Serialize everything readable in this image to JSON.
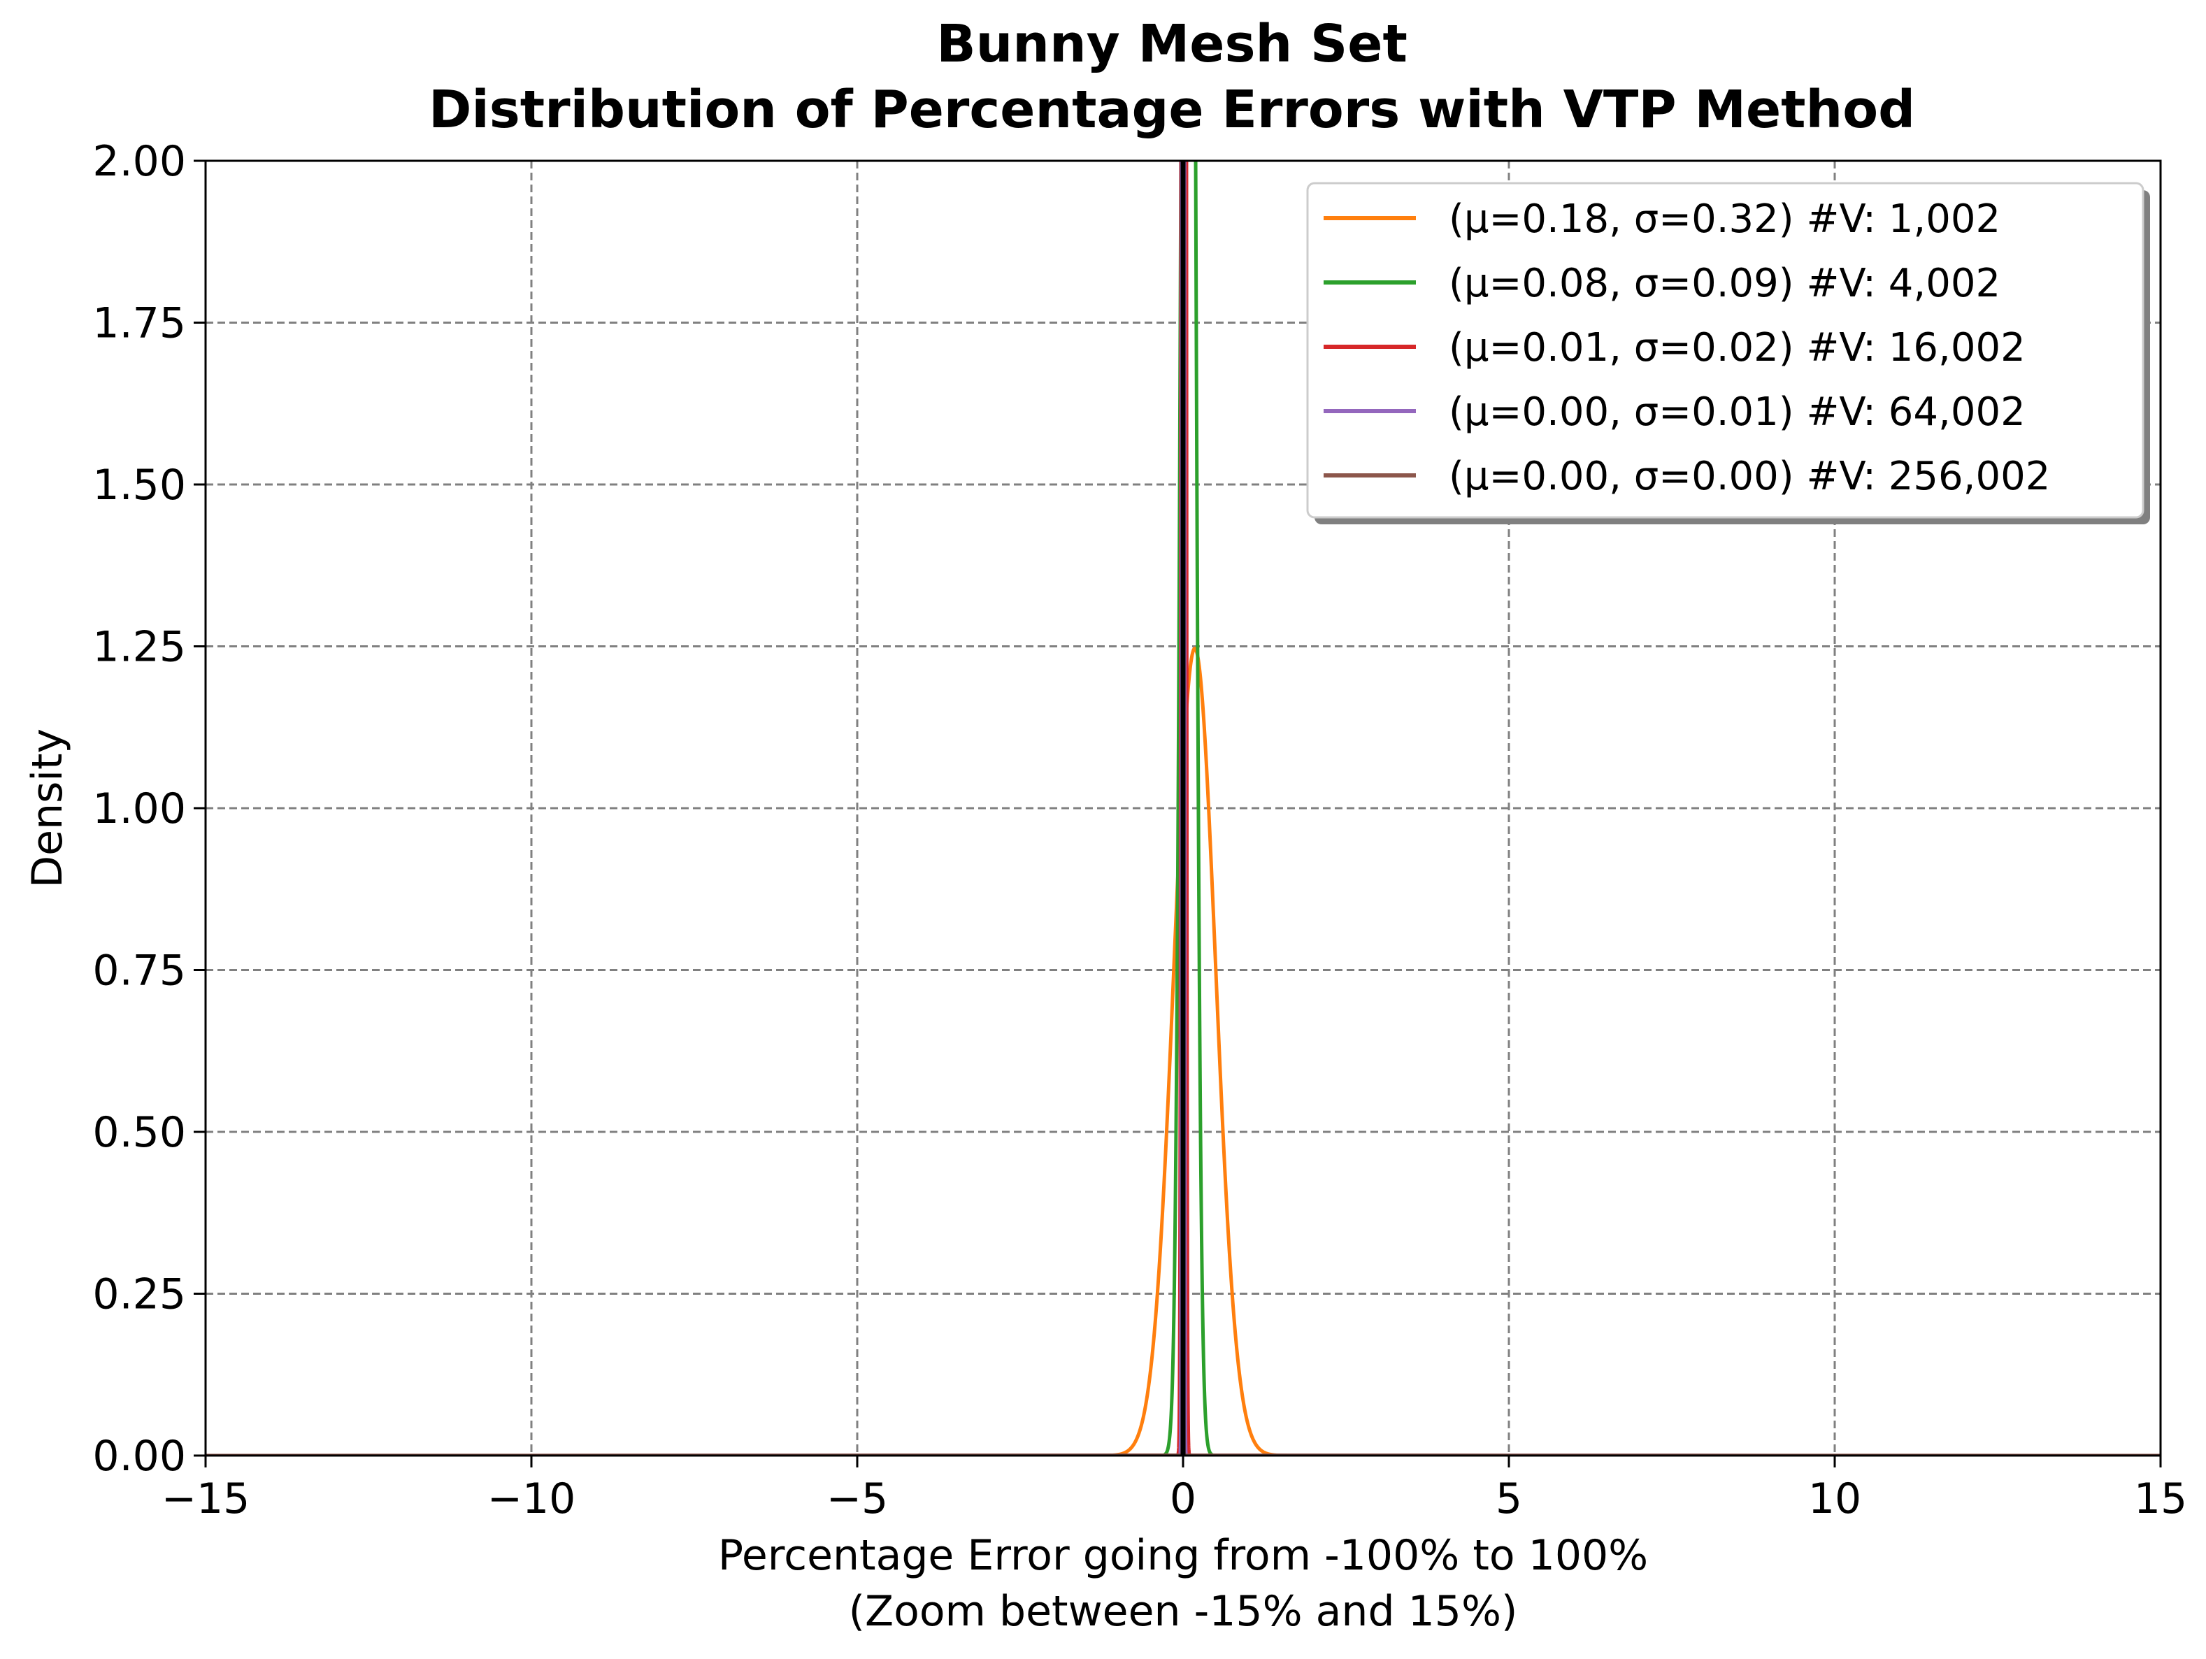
{
  "chart_data": {
    "type": "line",
    "title": "Bunny Mesh Set",
    "subtitle": "Distribution of Percentage Errors with VTP Method",
    "xlabel": "Percentage Error going from -100% to 100%",
    "xlabel2": "(Zoom between -15% and 15%)",
    "ylabel": "Density",
    "xlim": [
      -15,
      15
    ],
    "ylim": [
      0,
      2
    ],
    "xticks": [
      -15,
      -10,
      -5,
      0,
      5,
      10,
      15
    ],
    "xtick_labels": [
      "−15",
      "−10",
      "−5",
      "0",
      "5",
      "10",
      "15"
    ],
    "yticks": [
      0,
      0.25,
      0.5,
      0.75,
      1.0,
      1.25,
      1.5,
      1.75,
      2.0
    ],
    "ytick_labels": [
      "0.00",
      "0.25",
      "0.50",
      "0.75",
      "1.00",
      "1.25",
      "1.50",
      "1.75",
      "2.00"
    ],
    "grid": true,
    "grid_style": "dashed",
    "legend_position": "top-right",
    "series": [
      {
        "name": "(μ=0.18, σ=0.32) #V: 1,002",
        "mu": 0.18,
        "sigma": 0.32,
        "color": "#ff7f0e"
      },
      {
        "name": "(μ=0.08, σ=0.09) #V: 4,002",
        "mu": 0.08,
        "sigma": 0.09,
        "color": "#2ca02c"
      },
      {
        "name": "(μ=0.01, σ=0.02) #V: 16,002",
        "mu": 0.01,
        "sigma": 0.02,
        "color": "#d62728"
      },
      {
        "name": "(μ=0.00, σ=0.01) #V: 64,002",
        "mu": 0.0,
        "sigma": 0.01,
        "color": "#9467bd"
      },
      {
        "name": "(μ=0.00, σ=0.00) #V: 256,002",
        "mu": 0.0,
        "sigma": 0.003,
        "color": "#8c564b"
      }
    ],
    "reference_line": {
      "x": 0,
      "color": "#000000"
    }
  }
}
